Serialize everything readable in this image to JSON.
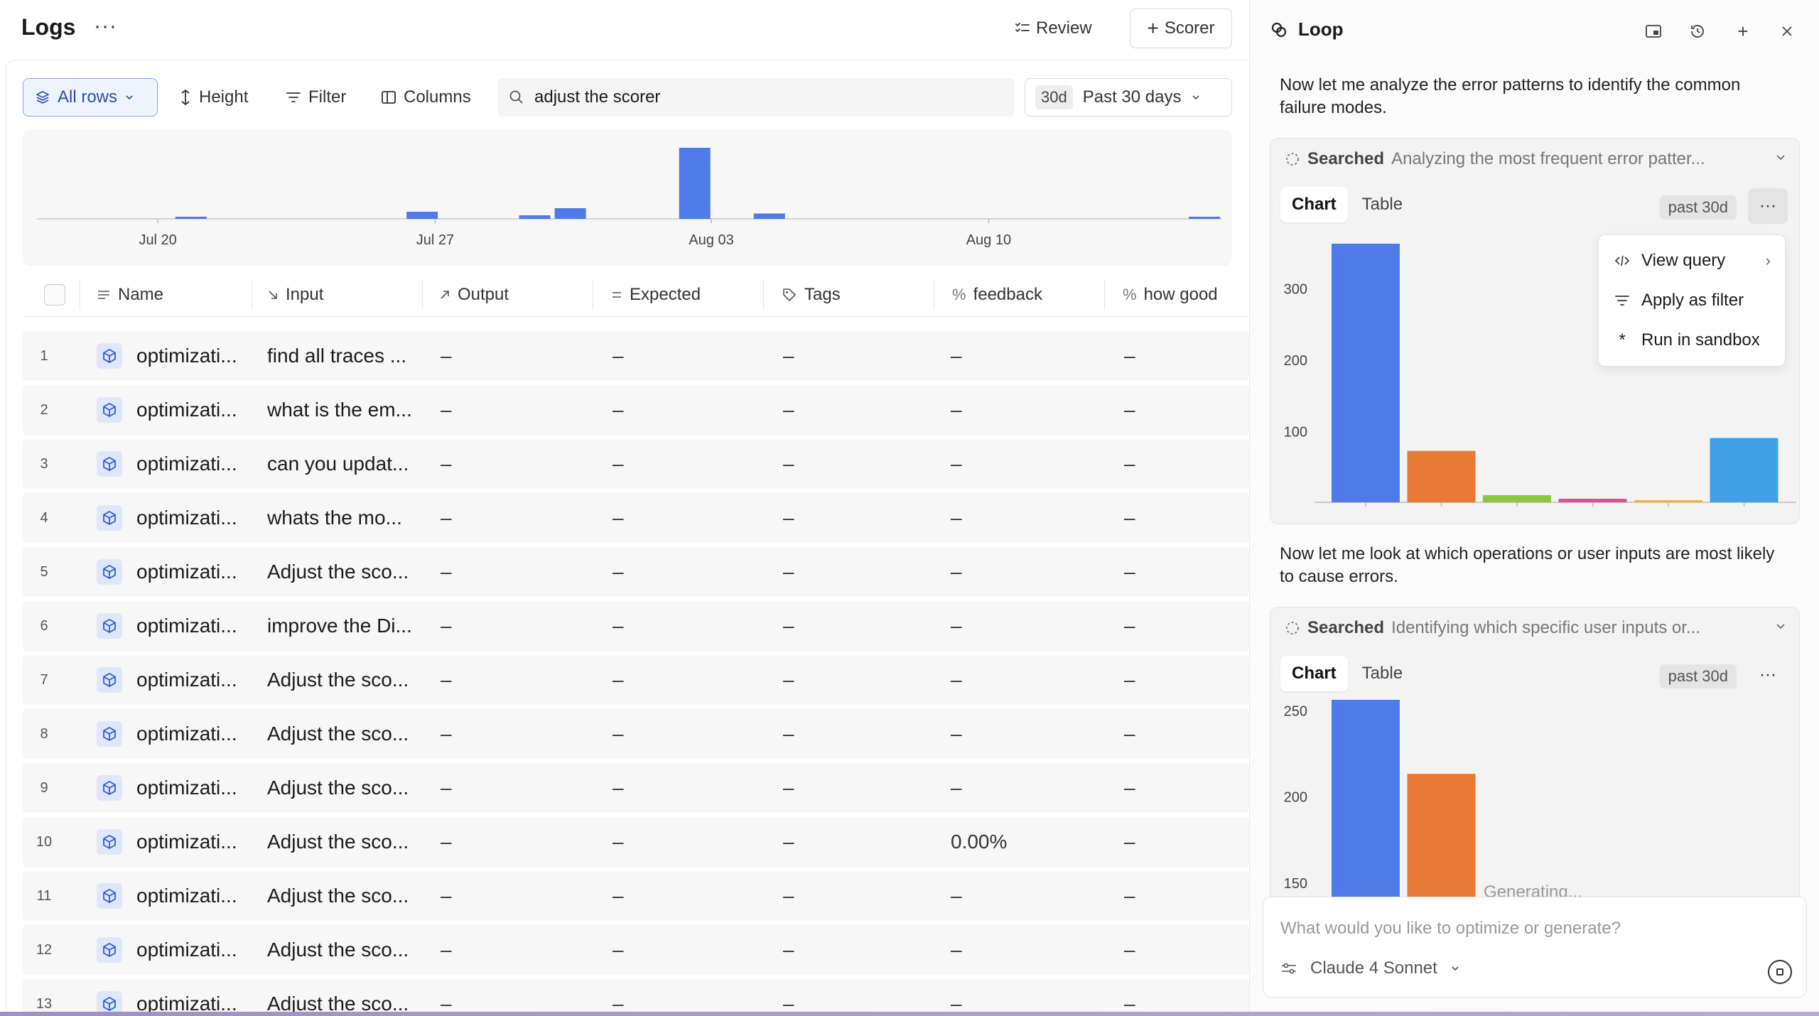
{
  "header": {
    "title": "Logs",
    "more": "···",
    "review_label": "Review",
    "scorer_label": "Scorer"
  },
  "toolbar": {
    "all_rows_label": "All rows",
    "height_label": "Height",
    "filter_label": "Filter",
    "columns_label": "Columns",
    "search_value": "adjust the scorer",
    "date_badge": "30d",
    "date_label": "Past 30 days"
  },
  "histogram": {
    "chart_data": {
      "type": "bar",
      "x_ticks": [
        "Jul 20",
        "Jul 27",
        "Aug 03",
        "Aug 10"
      ],
      "bars": [
        {
          "pos": 0.13,
          "value": 1
        },
        {
          "pos": 0.325,
          "value": 4
        },
        {
          "pos": 0.42,
          "value": 2
        },
        {
          "pos": 0.45,
          "value": 6
        },
        {
          "pos": 0.555,
          "value": 40
        },
        {
          "pos": 0.618,
          "value": 3
        },
        {
          "pos": 0.985,
          "value": 1
        }
      ],
      "max": 40,
      "color": "#4f7be8"
    }
  },
  "table": {
    "columns": [
      {
        "label": "Name",
        "icon": "lines-icon"
      },
      {
        "label": "Input",
        "icon": "arrow-in-icon"
      },
      {
        "label": "Output",
        "icon": "arrow-out-icon"
      },
      {
        "label": "Expected",
        "icon": "equals-icon"
      },
      {
        "label": "Tags",
        "icon": "tag-icon"
      },
      {
        "label": "feedback",
        "icon": "percent-icon"
      },
      {
        "label": "how good",
        "icon": "percent-icon"
      }
    ],
    "rows": [
      {
        "num": "1",
        "name": "optimizati...",
        "input": "find all traces ...",
        "output": "–",
        "expected": "–",
        "tags": "–",
        "feedback": "–",
        "how_good": "–"
      },
      {
        "num": "2",
        "name": "optimizati...",
        "input": "what is the em...",
        "output": "–",
        "expected": "–",
        "tags": "–",
        "feedback": "–",
        "how_good": "–"
      },
      {
        "num": "3",
        "name": "optimizati...",
        "input": "can you updat...",
        "output": "–",
        "expected": "–",
        "tags": "–",
        "feedback": "–",
        "how_good": "–"
      },
      {
        "num": "4",
        "name": "optimizati...",
        "input": "whats the mo...",
        "output": "–",
        "expected": "–",
        "tags": "–",
        "feedback": "–",
        "how_good": "–"
      },
      {
        "num": "5",
        "name": "optimizati...",
        "input": "Adjust the sco...",
        "output": "–",
        "expected": "–",
        "tags": "–",
        "feedback": "–",
        "how_good": "–"
      },
      {
        "num": "6",
        "name": "optimizati...",
        "input": "improve the Di...",
        "output": "–",
        "expected": "–",
        "tags": "–",
        "feedback": "–",
        "how_good": "–"
      },
      {
        "num": "7",
        "name": "optimizati...",
        "input": "Adjust the sco...",
        "output": "–",
        "expected": "–",
        "tags": "–",
        "feedback": "–",
        "how_good": "–"
      },
      {
        "num": "8",
        "name": "optimizati...",
        "input": "Adjust the sco...",
        "output": "–",
        "expected": "–",
        "tags": "–",
        "feedback": "–",
        "how_good": "–"
      },
      {
        "num": "9",
        "name": "optimizati...",
        "input": "Adjust the sco...",
        "output": "–",
        "expected": "–",
        "tags": "–",
        "feedback": "–",
        "how_good": "–"
      },
      {
        "num": "10",
        "name": "optimizati...",
        "input": "Adjust the sco...",
        "output": "–",
        "expected": "–",
        "tags": "–",
        "feedback": "0.00%",
        "how_good": "–"
      },
      {
        "num": "11",
        "name": "optimizati...",
        "input": "Adjust the sco...",
        "output": "–",
        "expected": "–",
        "tags": "–",
        "feedback": "–",
        "how_good": "–"
      },
      {
        "num": "12",
        "name": "optimizati...",
        "input": "Adjust the sco...",
        "output": "–",
        "expected": "–",
        "tags": "–",
        "feedback": "–",
        "how_good": "–"
      },
      {
        "num": "13",
        "name": "optimizati...",
        "input": "Adjust the sco...",
        "output": "–",
        "expected": "–",
        "tags": "–",
        "feedback": "–",
        "how_good": "–"
      }
    ]
  },
  "loop": {
    "title": "Loop",
    "message1": "Now let me analyze the error patterns to identify the common failure modes.",
    "card1": {
      "label": "Searched",
      "desc": "Analyzing the most frequent error patter...",
      "tab_chart": "Chart",
      "tab_table": "Table",
      "badge": "past 30d",
      "more": "···",
      "chart_data": {
        "type": "bar",
        "y_ticks": [
          100,
          200,
          300
        ],
        "ylim": [
          0,
          360
        ],
        "values": [
          362,
          72,
          10,
          5,
          3,
          90
        ],
        "colors": [
          "#4f7be8",
          "#e87a35",
          "#8cc63f",
          "#e0509a",
          "#f0b43c",
          "#3fa0e6"
        ]
      }
    },
    "menu": {
      "view_query": "View query",
      "apply_filter": "Apply as filter",
      "run_sandbox": "Run in sandbox"
    },
    "message2": "Now let me look at which operations or user inputs are most likely to cause errors.",
    "card2": {
      "label": "Searched",
      "desc": "Identifying which specific user inputs or...",
      "tab_chart": "Chart",
      "tab_table": "Table",
      "badge": "past 30d",
      "more": "···",
      "generating": "Generating...",
      "chart_data": {
        "type": "bar",
        "y_ticks": [
          150,
          200,
          250
        ],
        "ylim": [
          120,
          260
        ],
        "values": [
          257,
          213
        ],
        "colors": [
          "#4f7be8",
          "#e87a35"
        ]
      }
    },
    "composer": {
      "placeholder": "What would you like to optimize or generate?",
      "model": "Claude 4 Sonnet"
    }
  }
}
